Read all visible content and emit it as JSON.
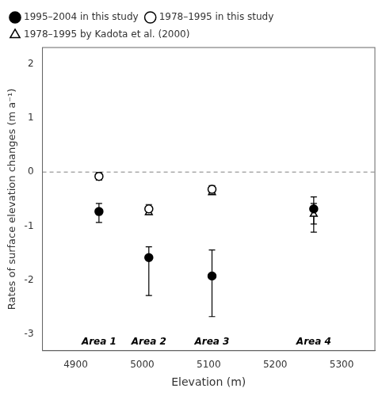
{
  "chart_data": {
    "type": "scatter",
    "xlabel": "Elevation (m)",
    "ylabel": "Rates of surface elevation changes (m a⁻¹)",
    "xlim": [
      4850,
      5350
    ],
    "ylim": [
      -3.3,
      2.3
    ],
    "xticks": [
      4900,
      5000,
      5100,
      5200,
      5300
    ],
    "yticks": [
      -3,
      -2,
      -1,
      0,
      1,
      2
    ],
    "grid": false,
    "legend": "upper left",
    "reference_lines": [
      {
        "y": 0,
        "line_style": "dashed"
      }
    ],
    "annotations": [
      {
        "text": "Area 1",
        "x": 4935,
        "y": -3.05
      },
      {
        "text": "Area 2",
        "x": 5010,
        "y": -3.05
      },
      {
        "text": "Area 3",
        "x": 5105,
        "y": -3.05
      },
      {
        "text": "Area 4",
        "x": 5258,
        "y": -3.05
      }
    ],
    "series": [
      {
        "name": "1995–2004 in this study",
        "color": "black",
        "marker": "filled_circle",
        "x": [
          4935,
          5010,
          5105,
          5258
        ],
        "values": [
          -0.73,
          -1.58,
          -1.92,
          -0.68
        ],
        "yerr_lower": [
          0.2,
          0.7,
          0.75,
          0.28
        ],
        "yerr_upper": [
          0.15,
          0.2,
          0.48,
          0.22
        ]
      },
      {
        "name": "1978–1995 in this study",
        "color": "black",
        "marker": "open_circle",
        "x": [
          4935,
          5010,
          5105
        ],
        "values": [
          -0.08,
          -0.68,
          -0.32
        ],
        "yerr_lower": [
          0.07,
          0.1,
          0.08
        ],
        "yerr_upper": [
          0.07,
          0.08,
          0.07
        ]
      },
      {
        "name": "1978–1995 by Kadota et al. (2000)",
        "color": "black",
        "marker": "open_triangle",
        "x": [
          5010,
          5105,
          5258
        ],
        "values": [
          -0.75,
          -0.38,
          -0.78
        ],
        "yerr_lower": [
          null,
          null,
          0.33
        ],
        "yerr_upper": [
          null,
          null,
          0.2
        ]
      }
    ]
  }
}
